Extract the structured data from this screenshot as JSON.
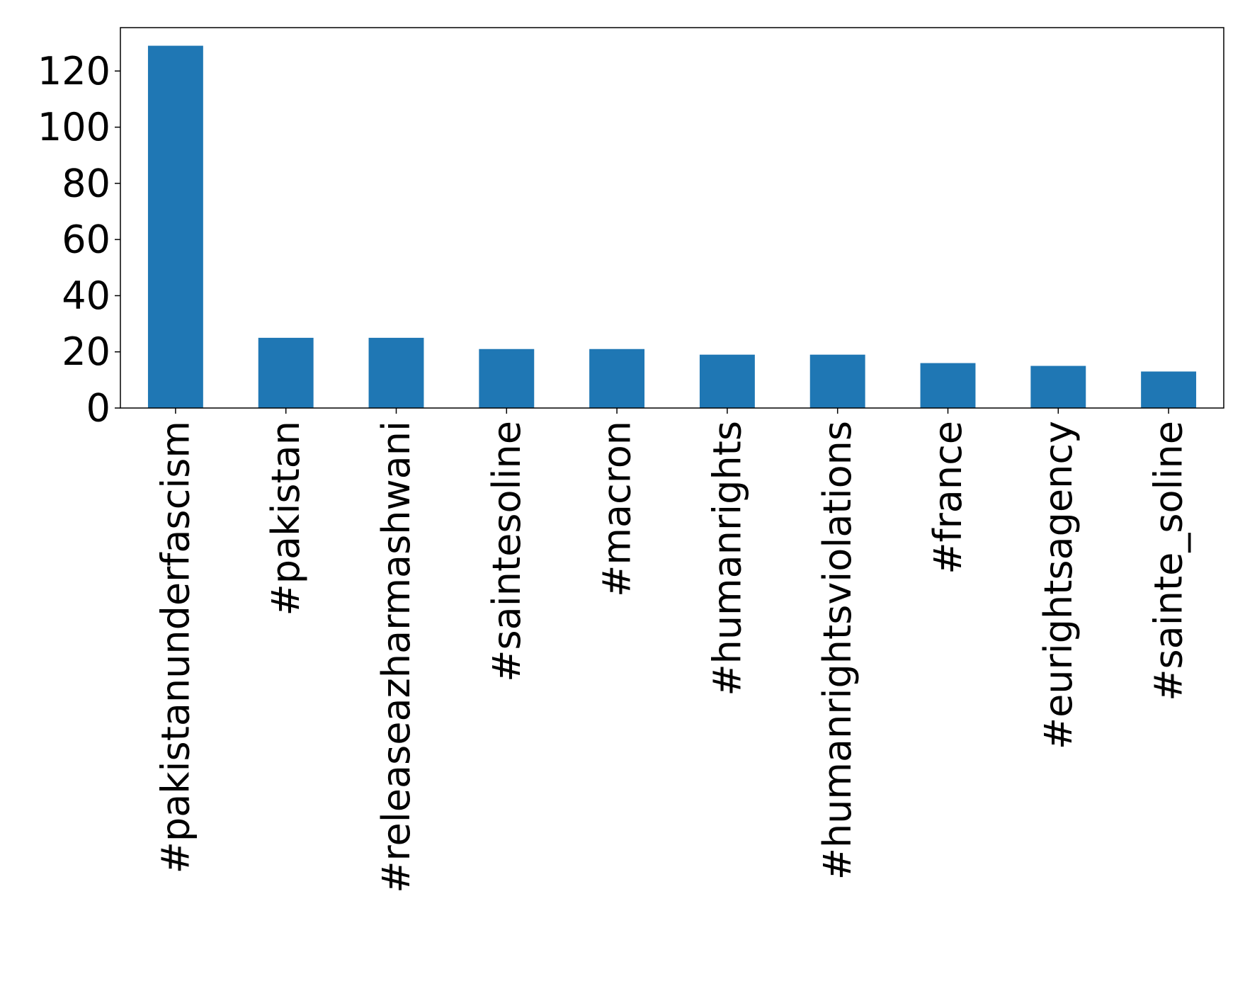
{
  "chart_data": {
    "type": "bar",
    "categories": [
      "#pakistanunderfascism",
      "#pakistan",
      "#releaseazharmashwani",
      "#saintesoline",
      "#macron",
      "#humanrights",
      "#humanrightsviolations",
      "#france",
      "#eurightsagency",
      "#sainte_soline"
    ],
    "values": [
      129,
      25,
      25,
      21,
      21,
      19,
      19,
      16,
      15,
      13
    ],
    "color": "#1f77b4",
    "ylim": [
      0,
      135.45
    ],
    "yticks": [
      0,
      20,
      40,
      60,
      80,
      100,
      120
    ],
    "grid": false
  }
}
